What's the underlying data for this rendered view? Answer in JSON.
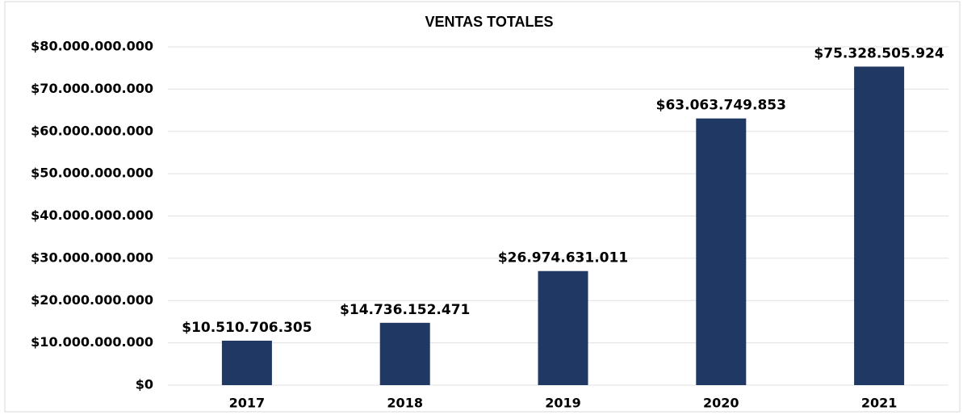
{
  "chart_data": {
    "type": "bar",
    "title": "VENTAS TOTALES",
    "categories": [
      "2017",
      "2018",
      "2019",
      "2020",
      "2021"
    ],
    "values": [
      10510706305,
      14736152471,
      26974631011,
      63063749853,
      75328505924
    ],
    "value_labels": [
      "$10.510.706.305",
      "$14.736.152.471",
      "$26.974.631.011",
      "$63.063.749.853",
      "$75.328.505.924"
    ],
    "color": "#203864",
    "ylim": [
      0,
      80000000000
    ],
    "yticks": [
      {
        "value": 0,
        "label": "$0"
      },
      {
        "value": 10000000000,
        "label": "$10.000.000.000"
      },
      {
        "value": 20000000000,
        "label": "$20.000.000.000"
      },
      {
        "value": 30000000000,
        "label": "$30.000.000.000"
      },
      {
        "value": 40000000000,
        "label": "$40.000.000.000"
      },
      {
        "value": 50000000000,
        "label": "$50.000.000.000"
      },
      {
        "value": 60000000000,
        "label": "$60.000.000.000"
      },
      {
        "value": 70000000000,
        "label": "$70.000.000.000"
      },
      {
        "value": 80000000000,
        "label": "$80.000.000.000"
      }
    ],
    "grid": true
  }
}
